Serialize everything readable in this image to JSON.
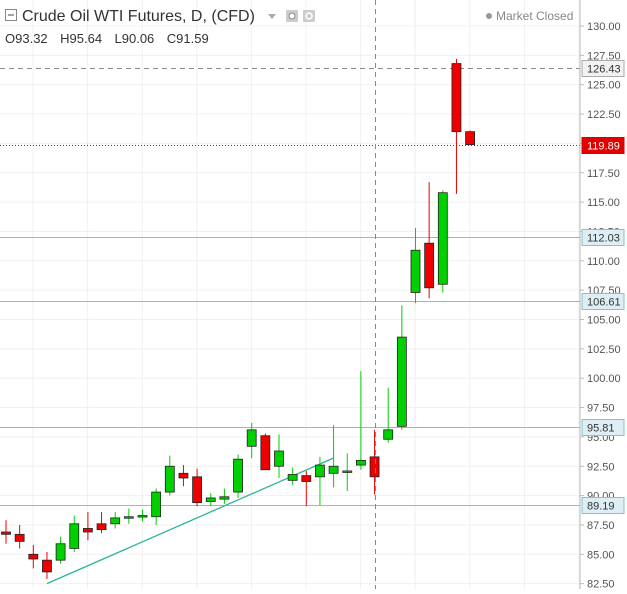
{
  "header": {
    "title": "Crude Oil WTI Futures, D, (CFD)",
    "status": "Market Closed",
    "ohlc": [
      {
        "key": "O",
        "value": "93.32"
      },
      {
        "key": "H",
        "value": "95.64"
      },
      {
        "key": "L",
        "value": "90.06"
      },
      {
        "key": "C",
        "value": "91.59"
      }
    ]
  },
  "colors": {
    "up": "#00d000",
    "down": "#ee0000",
    "level_line": "#7fc4d0",
    "trend_line": "#2bb59a",
    "grid": "#f0f0f0",
    "current_price": "#e00000",
    "crosshair": "#888888"
  },
  "chart_data": {
    "type": "candlestick",
    "symbol": "Crude Oil WTI Futures",
    "interval": "D",
    "ylim": [
      82.5,
      131.5
    ],
    "yticks": [
      "82.50",
      "85.00",
      "87.50",
      "90.00",
      "92.50",
      "95.00",
      "97.50",
      "100.00",
      "102.50",
      "105.00",
      "107.50",
      "110.00",
      "112.50",
      "115.00",
      "117.50",
      "120.00",
      "122.50",
      "125.00",
      "127.50",
      "130.00"
    ],
    "candles": [
      {
        "o": 86.9,
        "h": 87.9,
        "l": 85.9,
        "c": 86.7
      },
      {
        "o": 86.7,
        "h": 87.5,
        "l": 85.5,
        "c": 86.1
      },
      {
        "o": 85.0,
        "h": 85.8,
        "l": 83.8,
        "c": 84.6
      },
      {
        "o": 84.5,
        "h": 85.2,
        "l": 82.9,
        "c": 83.5
      },
      {
        "o": 84.5,
        "h": 86.5,
        "l": 84.2,
        "c": 85.9
      },
      {
        "o": 85.5,
        "h": 88.3,
        "l": 85.2,
        "c": 87.6
      },
      {
        "o": 87.2,
        "h": 88.6,
        "l": 86.2,
        "c": 86.9
      },
      {
        "o": 87.6,
        "h": 88.6,
        "l": 86.8,
        "c": 87.1
      },
      {
        "o": 87.6,
        "h": 88.6,
        "l": 87.2,
        "c": 88.1
      },
      {
        "o": 88.1,
        "h": 88.9,
        "l": 87.6,
        "c": 88.2
      },
      {
        "o": 88.2,
        "h": 88.8,
        "l": 87.8,
        "c": 88.3
      },
      {
        "o": 88.2,
        "h": 90.6,
        "l": 87.5,
        "c": 90.3
      },
      {
        "o": 90.3,
        "h": 93.4,
        "l": 90.0,
        "c": 92.5
      },
      {
        "o": 91.9,
        "h": 92.6,
        "l": 90.8,
        "c": 91.5
      },
      {
        "o": 91.6,
        "h": 92.3,
        "l": 89.1,
        "c": 89.4
      },
      {
        "o": 89.5,
        "h": 90.2,
        "l": 89.1,
        "c": 89.8
      },
      {
        "o": 89.7,
        "h": 90.6,
        "l": 89.3,
        "c": 89.9
      },
      {
        "o": 90.3,
        "h": 93.5,
        "l": 89.8,
        "c": 93.1
      },
      {
        "o": 94.2,
        "h": 96.2,
        "l": 93.2,
        "c": 95.6
      },
      {
        "o": 95.1,
        "h": 95.3,
        "l": 92.2,
        "c": 92.2
      },
      {
        "o": 92.5,
        "h": 95.2,
        "l": 91.5,
        "c": 93.8
      },
      {
        "o": 91.3,
        "h": 92.4,
        "l": 90.9,
        "c": 91.8
      },
      {
        "o": 91.7,
        "h": 92.1,
        "l": 89.1,
        "c": 91.2
      },
      {
        "o": 91.6,
        "h": 93.3,
        "l": 89.2,
        "c": 92.6
      },
      {
        "o": 91.9,
        "h": 96.0,
        "l": 90.7,
        "c": 92.5
      },
      {
        "o": 92.0,
        "h": 93.6,
        "l": 90.4,
        "c": 92.1
      },
      {
        "o": 92.6,
        "h": 100.6,
        "l": 92.2,
        "c": 93.0
      },
      {
        "o": 93.3,
        "h": 95.6,
        "l": 90.1,
        "c": 91.6
      },
      {
        "o": 94.8,
        "h": 99.2,
        "l": 94.5,
        "c": 95.6
      },
      {
        "o": 95.9,
        "h": 106.2,
        "l": 95.6,
        "c": 103.5
      },
      {
        "o": 107.3,
        "h": 112.8,
        "l": 106.4,
        "c": 110.9
      },
      {
        "o": 111.5,
        "h": 116.7,
        "l": 106.8,
        "c": 107.7
      },
      {
        "o": 108.0,
        "h": 116.0,
        "l": 107.3,
        "c": 115.8
      },
      {
        "o": 126.8,
        "h": 127.2,
        "l": 115.7,
        "c": 121.0
      },
      {
        "o": 121.0,
        "h": 121.1,
        "l": 119.9,
        "c": 119.9
      }
    ],
    "horizontal_lines": [
      {
        "value": 126.43,
        "label": "126.43",
        "style": "dashed",
        "kind": "high"
      },
      {
        "value": 119.89,
        "label": "119.89",
        "style": "dotted",
        "kind": "current"
      },
      {
        "value": 112.03,
        "label": "112.03",
        "style": "solid",
        "kind": "level"
      },
      {
        "value": 106.61,
        "label": "106.61",
        "style": "solid",
        "kind": "level"
      },
      {
        "value": 95.81,
        "label": "95.81",
        "style": "solid",
        "kind": "level"
      },
      {
        "value": 89.19,
        "label": "89.19",
        "style": "solid",
        "kind": "level"
      }
    ],
    "trend_line": {
      "from": {
        "candle": 3,
        "price": 82.5
      },
      "to": {
        "candle": 24,
        "price": 93.2
      }
    },
    "crosshair": {
      "candle": 27
    }
  }
}
